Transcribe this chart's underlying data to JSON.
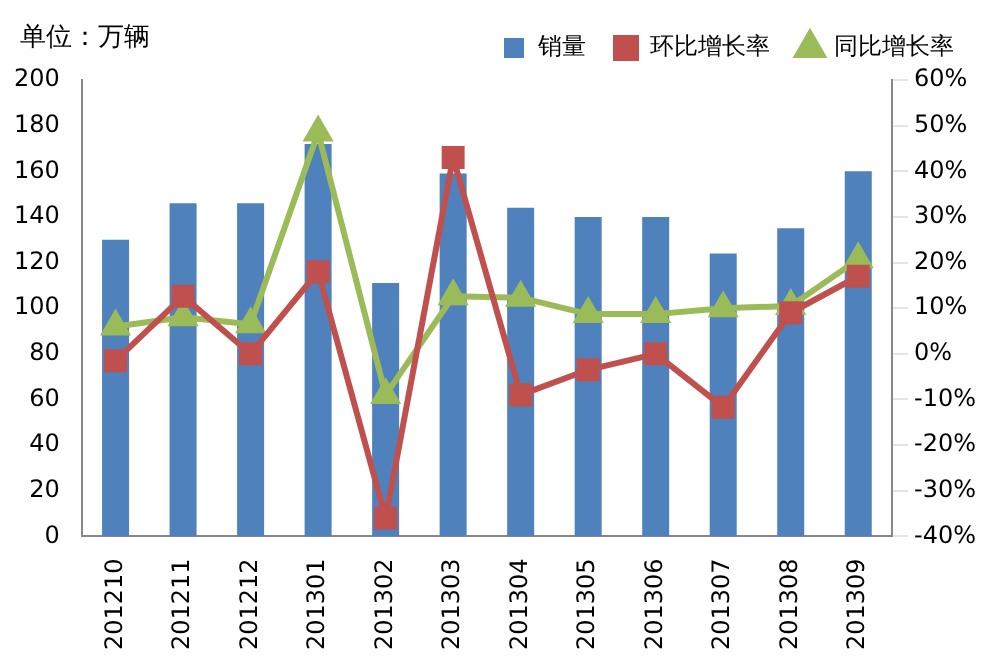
{
  "chart_data": {
    "type": "bar",
    "annotations": [
      "单位：万辆"
    ],
    "categories": [
      "201210",
      "201211",
      "201212",
      "201301",
      "201302",
      "201303",
      "201304",
      "201305",
      "201306",
      "201307",
      "201308",
      "201309"
    ],
    "series": [
      {
        "name": "销量",
        "color": "#4f81bd",
        "values": [
          130,
          146,
          146,
          172,
          111,
          159,
          144,
          140,
          140,
          124,
          135,
          160
        ]
      },
      {
        "name": "环比增长率",
        "type": "line",
        "axis": "y2",
        "marker": "square",
        "color": "#c0504d",
        "values": [
          -1.5,
          12.6,
          0,
          18,
          -36,
          43,
          -9,
          -3.5,
          0,
          -11.7,
          9,
          17
        ]
      },
      {
        "name": "同比增长率",
        "type": "line",
        "axis": "y2",
        "marker": "triangle",
        "color": "#9bbb59",
        "values": [
          6,
          8,
          6.5,
          48.5,
          -9,
          12.6,
          12.3,
          8.7,
          8.7,
          10,
          10.5,
          20.7
        ]
      }
    ],
    "ylim": [
      0,
      200
    ],
    "yticks": [
      0,
      20,
      40,
      60,
      80,
      100,
      120,
      140,
      160,
      180,
      200
    ],
    "y2lim": [
      -40,
      60
    ],
    "y2ticks": [
      {
        "value": -40,
        "label": "-40%"
      },
      {
        "value": -30,
        "label": "-30%"
      },
      {
        "value": -20,
        "label": "-20%"
      },
      {
        "value": -10,
        "label": "-10%"
      },
      {
        "value": 0,
        "label": "0%"
      },
      {
        "value": 10,
        "label": "10%"
      },
      {
        "value": 20,
        "label": "20%"
      },
      {
        "value": 30,
        "label": "30%"
      },
      {
        "value": 40,
        "label": "40%"
      },
      {
        "value": 50,
        "label": "50%"
      },
      {
        "value": 60,
        "label": "60%"
      }
    ],
    "grid": false,
    "legend": "top"
  }
}
